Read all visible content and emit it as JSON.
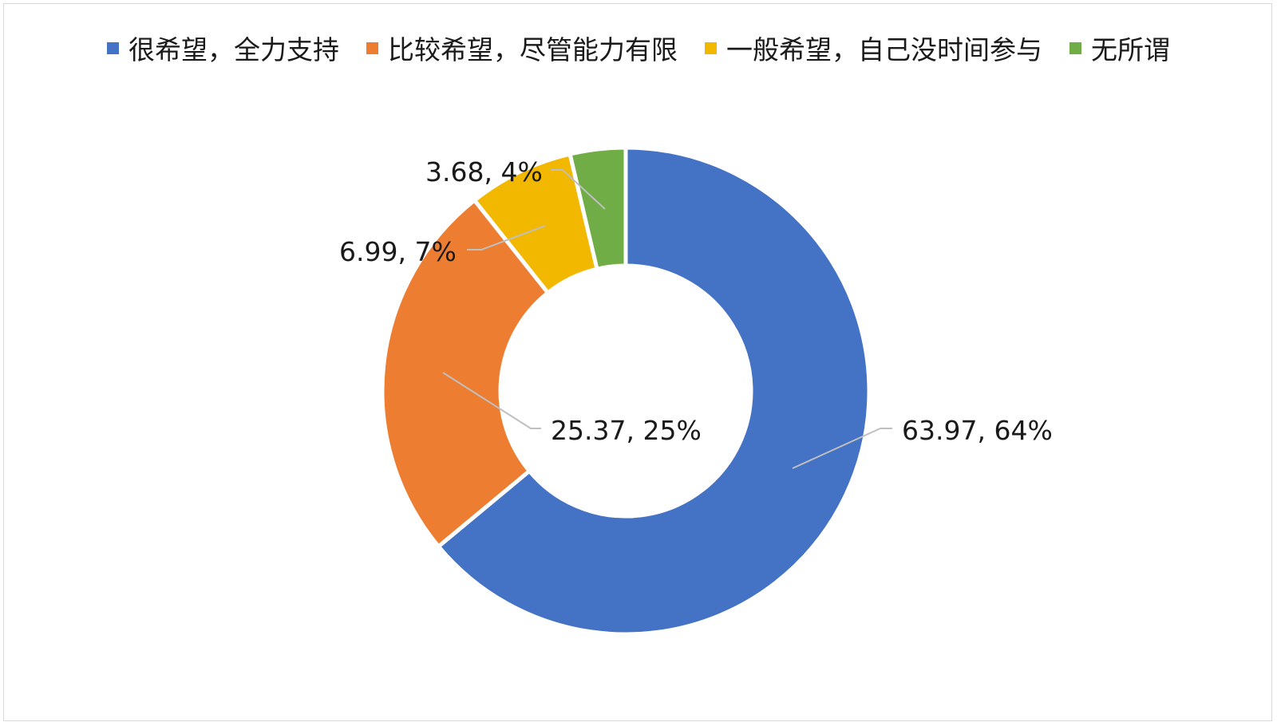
{
  "chart_data": {
    "type": "donut",
    "series": [
      {
        "values": [
          63.97,
          25.37,
          6.99,
          3.68
        ],
        "percent_labels": [
          "64%",
          "25%",
          "7%",
          "4%"
        ]
      }
    ],
    "categories": [
      "很希望，全力支持",
      "比较希望，尽管能力有限",
      "一般希望，自己没时间参与",
      "无所谓"
    ],
    "data_labels": [
      "63.97, 64%",
      "25.37, 25%",
      "6.99, 7%",
      "3.68, 4%"
    ],
    "colors": [
      "#4472C4",
      "#ED7D31",
      "#F2B800",
      "#70AD47"
    ],
    "legend_position": "top",
    "title": ""
  }
}
